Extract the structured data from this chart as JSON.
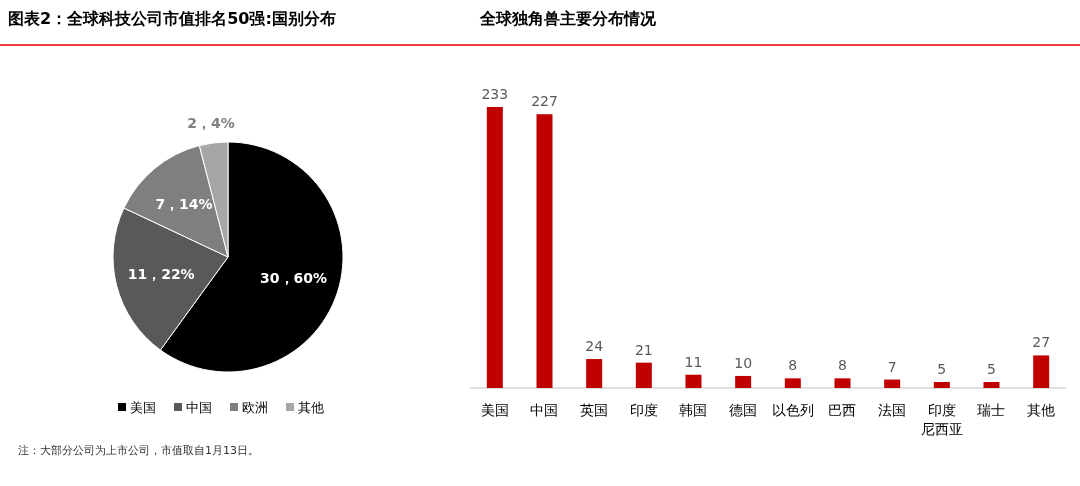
{
  "chart_data": [
    {
      "type": "pie",
      "title": "图表2：全球科技公司市值排名50强:国别分布",
      "categories": [
        "美国",
        "中国",
        "欧洲",
        "其他"
      ],
      "values": [
        30,
        11,
        7,
        2
      ],
      "colors": [
        "#000000",
        "#595959",
        "#7f7f7f",
        "#a6a6a6"
      ],
      "value_labels": [
        "30，60%",
        "11，22%",
        "7，14%",
        "2，4%"
      ],
      "legend": "bottom",
      "annotations": [
        "注：大部分公司为上市公司，市值取自1月13日。"
      ]
    },
    {
      "type": "bar",
      "title": "全球独角兽主要分布情况",
      "categories": [
        "美国",
        "中国",
        "英国",
        "印度",
        "韩国",
        "德国",
        "以色列",
        "巴西",
        "法国",
        "印度尼西亚",
        "瑞士",
        "其他"
      ],
      "values": [
        233,
        227,
        24,
        21,
        11,
        10,
        8,
        8,
        7,
        5,
        5,
        27
      ],
      "color": "#c00000",
      "data_labels": true
    }
  ]
}
